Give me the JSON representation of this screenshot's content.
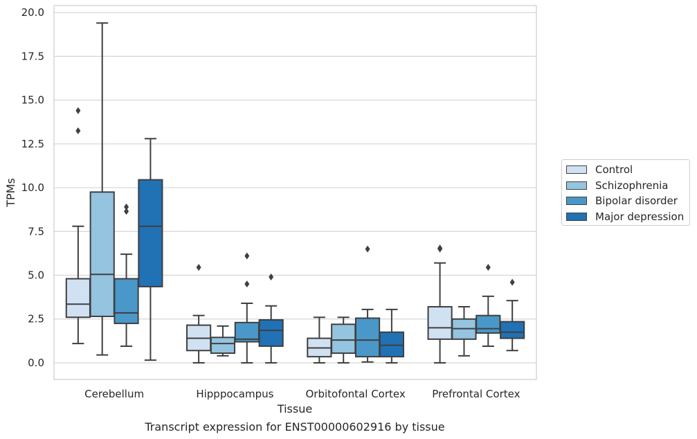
{
  "chart_data": {
    "type": "box",
    "title": "Transcript expression for ENST00000602916 by tissue",
    "xlabel": "Tissue",
    "ylabel": "TPMs",
    "ylim": [
      -0.95,
      20.4
    ],
    "yticks": [
      0.0,
      2.5,
      5.0,
      7.5,
      10.0,
      12.5,
      15.0,
      17.5,
      20.0
    ],
    "ytick_labels": [
      "0.0",
      "2.5",
      "5.0",
      "7.5",
      "10.0",
      "12.5",
      "15.0",
      "17.5",
      "20.0"
    ],
    "grid": "horizontal",
    "legend_placement": "outside-right",
    "categories": [
      "Cerebellum",
      "Hipppocampus",
      "Orbitofontal Cortex",
      "Prefrontal Cortex"
    ],
    "series": [
      {
        "name": "Control",
        "color": "#d0e1f2",
        "boxes": [
          {
            "whisker_low": 1.1,
            "q1": 2.6,
            "median": 3.35,
            "q3": 4.8,
            "whisker_high": 7.8,
            "outliers": [
              13.25,
              14.4
            ]
          },
          {
            "whisker_low": 0.0,
            "q1": 0.7,
            "median": 1.4,
            "q3": 2.15,
            "whisker_high": 2.7,
            "outliers": [
              5.45
            ]
          },
          {
            "whisker_low": 0.0,
            "q1": 0.35,
            "median": 0.85,
            "q3": 1.4,
            "whisker_high": 2.6,
            "outliers": []
          },
          {
            "whisker_low": 0.0,
            "q1": 1.35,
            "median": 2.0,
            "q3": 3.2,
            "whisker_high": 5.7,
            "outliers": [
              6.5,
              6.55
            ]
          }
        ]
      },
      {
        "name": "Schizophrenia",
        "color": "#94c4df",
        "boxes": [
          {
            "whisker_low": 0.45,
            "q1": 2.65,
            "median": 5.05,
            "q3": 9.75,
            "whisker_high": 19.4,
            "outliers": []
          },
          {
            "whisker_low": 0.4,
            "q1": 0.55,
            "median": 1.1,
            "q3": 1.45,
            "whisker_high": 2.1,
            "outliers": []
          },
          {
            "whisker_low": 0.0,
            "q1": 0.55,
            "median": 1.3,
            "q3": 2.2,
            "whisker_high": 2.6,
            "outliers": []
          },
          {
            "whisker_low": 0.4,
            "q1": 1.35,
            "median": 1.95,
            "q3": 2.5,
            "whisker_high": 3.2,
            "outliers": []
          }
        ]
      },
      {
        "name": "Bipolar disorder",
        "color": "#4a98c9",
        "boxes": [
          {
            "whisker_low": 0.95,
            "q1": 2.25,
            "median": 2.85,
            "q3": 4.8,
            "whisker_high": 6.2,
            "outliers": [
              8.65,
              8.9
            ]
          },
          {
            "whisker_low": 0.0,
            "q1": 1.2,
            "median": 1.35,
            "q3": 2.3,
            "whisker_high": 3.4,
            "outliers": [
              4.5,
              6.1
            ]
          },
          {
            "whisker_low": 0.05,
            "q1": 0.35,
            "median": 1.3,
            "q3": 2.55,
            "whisker_high": 3.05,
            "outliers": [
              6.5
            ]
          },
          {
            "whisker_low": 0.95,
            "q1": 1.7,
            "median": 1.95,
            "q3": 2.7,
            "whisker_high": 3.8,
            "outliers": [
              5.45
            ]
          }
        ]
      },
      {
        "name": "Major depression",
        "color": "#2171b5",
        "boxes": [
          {
            "whisker_low": 0.15,
            "q1": 4.35,
            "median": 7.8,
            "q3": 10.45,
            "whisker_high": 12.8,
            "outliers": []
          },
          {
            "whisker_low": 0.0,
            "q1": 0.95,
            "median": 1.85,
            "q3": 2.45,
            "whisker_high": 3.25,
            "outliers": [
              4.9
            ]
          },
          {
            "whisker_low": 0.0,
            "q1": 0.35,
            "median": 1.0,
            "q3": 1.75,
            "whisker_high": 3.05,
            "outliers": []
          },
          {
            "whisker_low": 0.7,
            "q1": 1.4,
            "median": 1.75,
            "q3": 2.35,
            "whisker_high": 3.55,
            "outliers": [
              4.6
            ]
          }
        ]
      }
    ]
  }
}
